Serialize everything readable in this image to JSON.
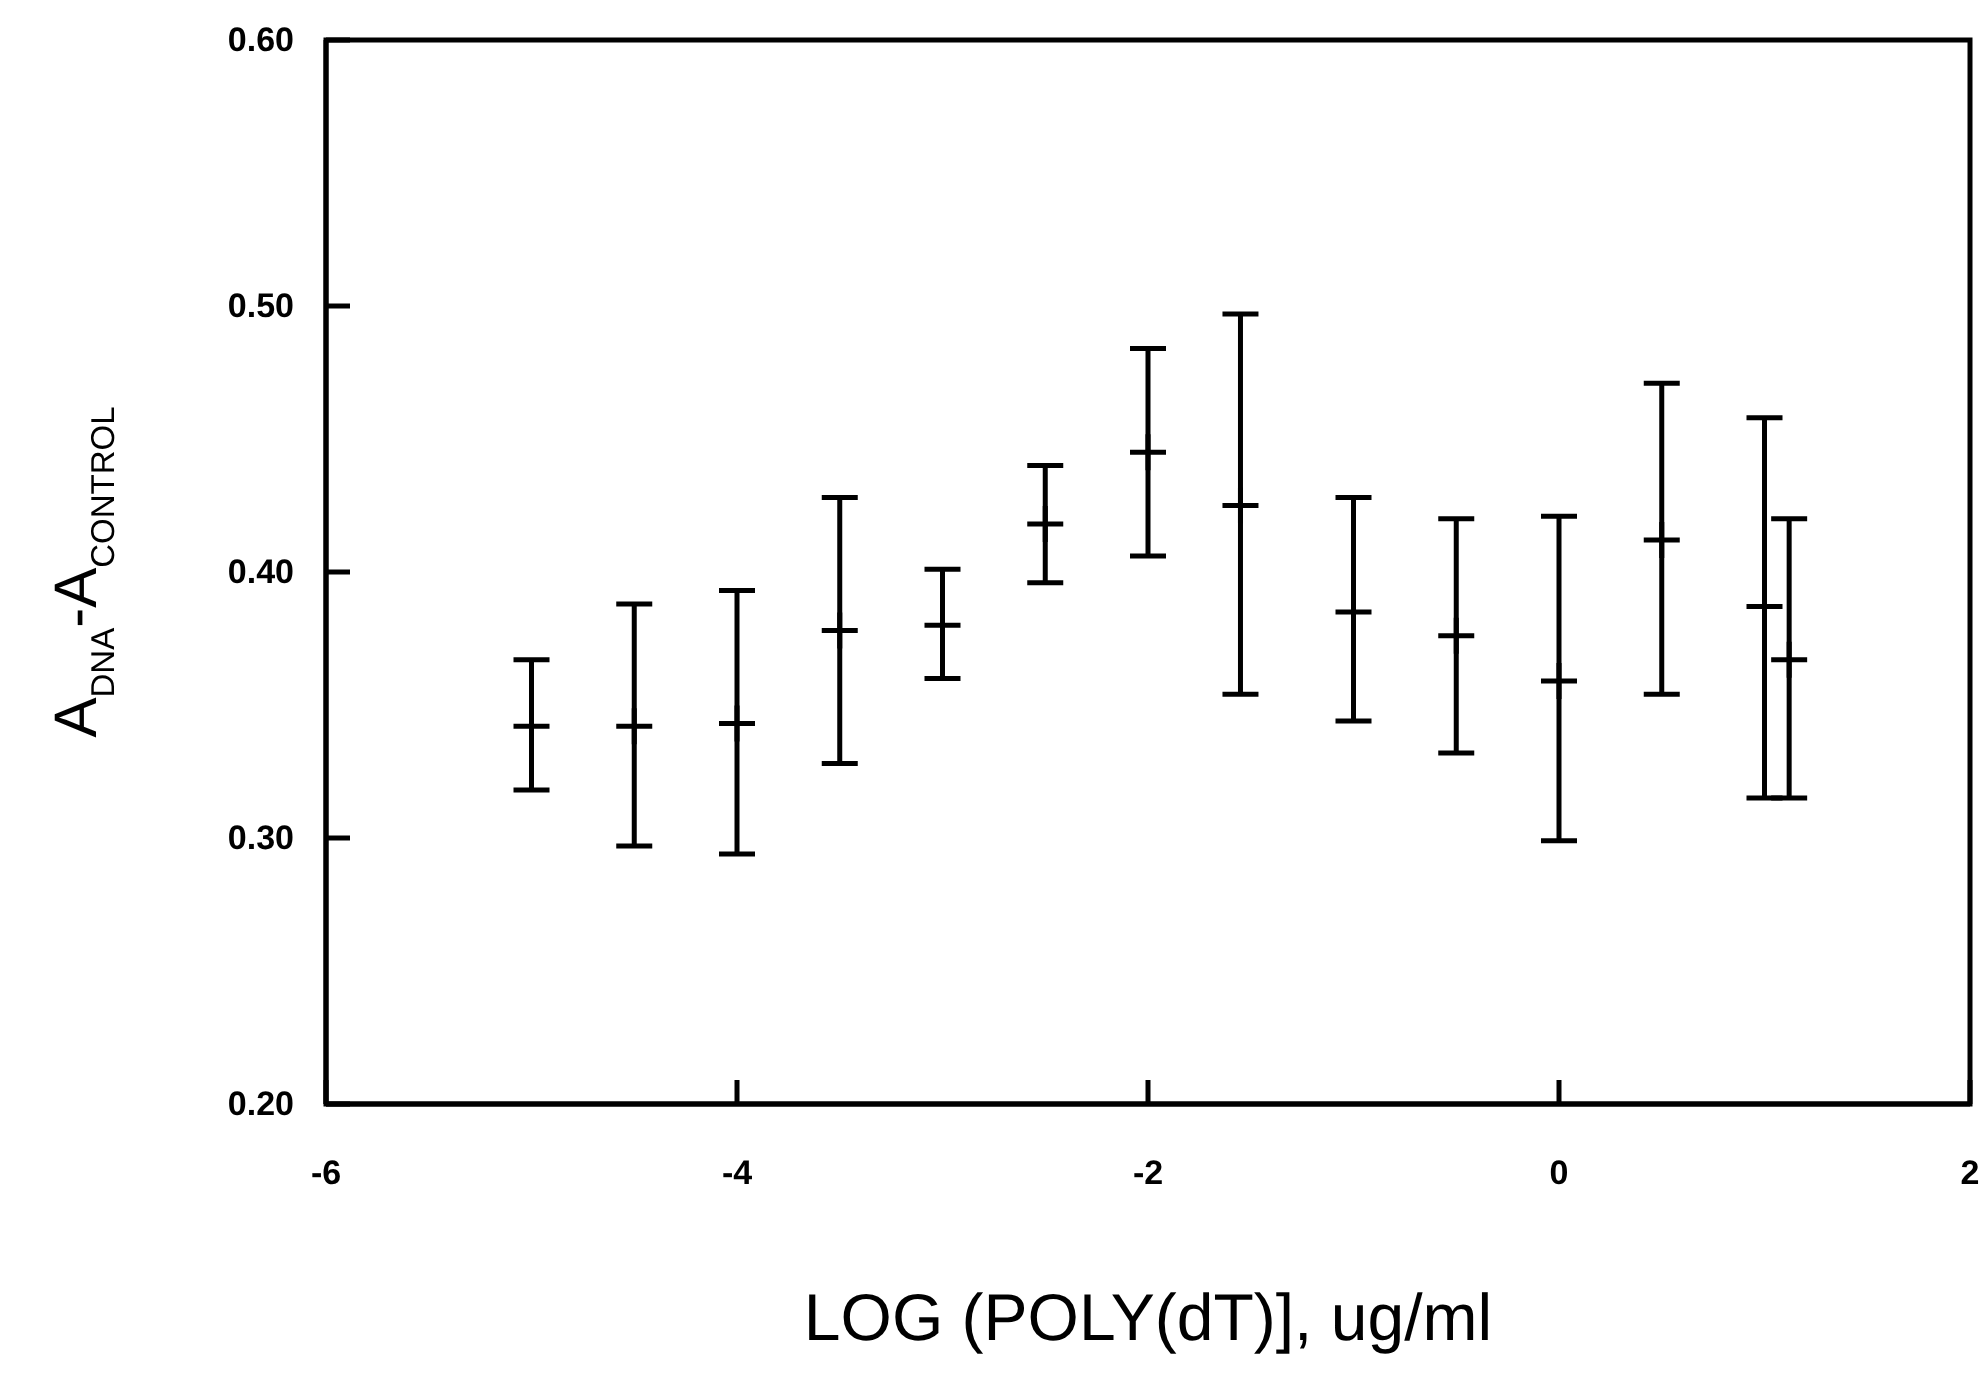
{
  "chart_data": {
    "type": "scatter",
    "xlabel": "LOG (POLY(dT)], ug/ml",
    "ylabel": "A$_{DNA}$-A$_{CONTROL}$",
    "x": [
      -5,
      -4.5,
      -4,
      -3.5,
      -3,
      -2.5,
      -2,
      -1.55,
      -1,
      -0.5,
      0,
      0.5,
      1.0,
      1.12
    ],
    "series": [
      {
        "color": "#000000",
        "values": [
          0.342,
          0.342,
          0.343,
          0.378,
          0.38,
          0.418,
          0.445,
          0.425,
          0.385,
          0.376,
          0.359,
          0.412,
          0.387,
          0.367
        ],
        "errors": [
          [
            0.318,
            0.367
          ],
          [
            0.297,
            0.388
          ],
          [
            0.294,
            0.393
          ],
          [
            0.328,
            0.428
          ],
          [
            0.36,
            0.401
          ],
          [
            0.396,
            0.44
          ],
          [
            0.406,
            0.484
          ],
          [
            0.354,
            0.497
          ],
          [
            0.344,
            0.428
          ],
          [
            0.332,
            0.42
          ],
          [
            0.299,
            0.421
          ],
          [
            0.354,
            0.471
          ],
          [
            0.315,
            0.458
          ],
          [
            0.315,
            0.42
          ]
        ]
      }
    ],
    "xlim": [
      -6,
      2
    ],
    "xticks": [
      -6,
      -4,
      -2,
      0,
      2
    ],
    "ylim": [
      0.2,
      0.6
    ],
    "yticks": [
      {
        "value": 0.2,
        "label": "0.20"
      },
      {
        "value": 0.3,
        "label": "0.30"
      },
      {
        "value": 0.4,
        "label": "0.40"
      },
      {
        "value": 0.5,
        "label": "0.50"
      },
      {
        "value": 0.6,
        "label": "0.60"
      }
    ],
    "marker": "cross"
  }
}
